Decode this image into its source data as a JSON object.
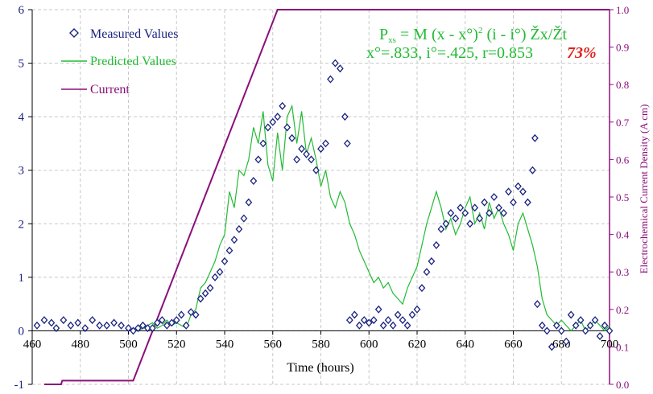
{
  "chart_data": {
    "type": "scatter+line",
    "xlabel": "Time (hours)",
    "ylabel_left": "",
    "ylabel_right": "Electrochemical Current Density (A cm)",
    "xlim": [
      460,
      700
    ],
    "ylim_left": [
      -1,
      6
    ],
    "ylim_right": [
      0.0,
      1.0
    ],
    "xticks": [
      460,
      480,
      500,
      520,
      540,
      560,
      580,
      600,
      620,
      640,
      660,
      680,
      700
    ],
    "yticks_left": [
      -1,
      0,
      1,
      2,
      3,
      4,
      5,
      6
    ],
    "yticks_right": [
      "0.0",
      "0.1",
      "0.2",
      "0.3",
      "0.4",
      "0.5",
      "0.6",
      "0.7",
      "0.8",
      "0.9",
      "1.0"
    ],
    "grid": true,
    "legend": [
      {
        "name": "Measured Values",
        "marker": "diamond-open",
        "color": "#1a237e"
      },
      {
        "name": "Predicted Values",
        "marker": "line",
        "color": "#22bb33"
      },
      {
        "name": "Current",
        "marker": "line",
        "color": "#8b0f7a"
      }
    ],
    "annotation": {
      "formula_lhs": "P",
      "formula_sub": "xs",
      "formula_rhs": " = M (x - x°)",
      "formula_sup": "2",
      "formula_tail": " (i - i°) Žx/Žt",
      "params": "x°=.833, i°=.425, r=0.853",
      "accuracy": "73%"
    },
    "series": [
      {
        "name": "Current",
        "axis": "right",
        "x": [
          465,
          472,
          472.5,
          502,
          562,
          700
        ],
        "y": [
          0.0,
          0.0,
          0.01,
          0.01,
          1.0,
          1.0
        ]
      },
      {
        "name": "Measured Values",
        "axis": "left",
        "x": [
          462,
          465,
          468,
          470,
          473,
          476,
          479,
          482,
          485,
          488,
          491,
          494,
          497,
          500,
          502,
          504,
          506,
          508,
          510,
          512,
          514,
          516,
          518,
          520,
          522,
          524,
          526,
          528,
          530,
          532,
          534,
          536,
          538,
          540,
          542,
          544,
          546,
          548,
          550,
          552,
          554,
          556,
          558,
          560,
          562,
          564,
          566,
          568,
          570,
          572,
          574,
          576,
          578,
          580,
          582,
          584,
          586,
          588,
          590,
          591,
          592,
          594,
          596,
          598,
          600,
          602,
          604,
          606,
          608,
          610,
          612,
          614,
          616,
          618,
          620,
          622,
          624,
          626,
          628,
          630,
          632,
          634,
          636,
          638,
          640,
          642,
          644,
          646,
          648,
          650,
          652,
          654,
          656,
          658,
          660,
          662,
          664,
          666,
          668,
          669,
          670,
          672,
          674,
          676,
          678,
          680,
          682,
          684,
          686,
          688,
          690,
          692,
          694,
          696,
          698,
          700
        ],
        "y": [
          0.1,
          0.2,
          0.15,
          0.05,
          0.2,
          0.1,
          0.15,
          0.05,
          0.2,
          0.1,
          0.1,
          0.15,
          0.1,
          0.05,
          0.0,
          0.05,
          0.1,
          0.05,
          0.05,
          0.15,
          0.2,
          0.1,
          0.15,
          0.2,
          0.3,
          0.1,
          0.35,
          0.3,
          0.6,
          0.7,
          0.8,
          1.0,
          1.1,
          1.3,
          1.5,
          1.7,
          1.9,
          2.1,
          2.4,
          2.8,
          3.2,
          3.5,
          3.8,
          3.9,
          4.0,
          4.2,
          3.8,
          3.6,
          3.2,
          3.4,
          3.3,
          3.2,
          3.0,
          3.4,
          3.5,
          4.7,
          5.0,
          4.9,
          4.0,
          3.5,
          0.2,
          0.3,
          0.1,
          0.2,
          0.15,
          0.2,
          0.4,
          0.1,
          0.2,
          0.1,
          0.3,
          0.2,
          0.1,
          0.3,
          0.4,
          0.8,
          1.1,
          1.3,
          1.6,
          1.9,
          2.0,
          2.2,
          2.1,
          2.3,
          2.2,
          2.0,
          2.3,
          2.1,
          2.4,
          2.2,
          2.5,
          2.3,
          2.2,
          2.6,
          2.4,
          2.7,
          2.6,
          2.4,
          3.0,
          3.6,
          0.5,
          0.1,
          0.0,
          -0.3,
          0.1,
          0.0,
          -0.2,
          0.3,
          0.1,
          0.2,
          0.0,
          0.1,
          0.2,
          -0.1,
          0.1,
          0.0
        ]
      },
      {
        "name": "Predicted Values",
        "axis": "left",
        "x": [
          504,
          506,
          508,
          510,
          512,
          514,
          516,
          518,
          520,
          522,
          524,
          526,
          528,
          530,
          532,
          534,
          536,
          538,
          540,
          542,
          544,
          546,
          548,
          550,
          552,
          554,
          556,
          558,
          560,
          562,
          564,
          566,
          568,
          570,
          572,
          574,
          576,
          578,
          580,
          582,
          584,
          586,
          588,
          590,
          592,
          594,
          596,
          598,
          600,
          602,
          604,
          606,
          608,
          610,
          612,
          614,
          616,
          618,
          620,
          622,
          624,
          626,
          628,
          630,
          632,
          634,
          636,
          638,
          640,
          642,
          644,
          646,
          648,
          650,
          652,
          654,
          656,
          658,
          660,
          662,
          664,
          666,
          668,
          670,
          672,
          674,
          676,
          678,
          680,
          682,
          684,
          686,
          688,
          690,
          692,
          694,
          696,
          698,
          700
        ],
        "y": [
          0.0,
          0.05,
          0.1,
          0.15,
          0.05,
          0.1,
          0.2,
          0.1,
          0.15,
          0.1,
          0.05,
          0.3,
          0.4,
          0.8,
          0.9,
          1.1,
          1.3,
          1.6,
          1.8,
          2.6,
          2.3,
          3.0,
          2.9,
          3.2,
          3.8,
          3.5,
          4.1,
          3.1,
          2.8,
          3.7,
          3.0,
          4.0,
          4.2,
          3.5,
          4.1,
          3.3,
          3.6,
          3.2,
          2.7,
          3.0,
          2.5,
          2.3,
          2.6,
          2.4,
          2.0,
          1.8,
          1.5,
          1.3,
          1.1,
          0.9,
          1.0,
          0.8,
          0.9,
          0.7,
          0.6,
          0.5,
          0.8,
          1.0,
          1.2,
          1.6,
          2.0,
          2.3,
          2.6,
          2.3,
          1.9,
          2.1,
          1.8,
          2.0,
          2.3,
          2.5,
          2.0,
          2.2,
          1.9,
          2.4,
          2.1,
          2.3,
          2.0,
          1.8,
          1.5,
          2.0,
          2.2,
          1.9,
          1.6,
          1.2,
          0.6,
          0.3,
          0.2,
          0.1,
          0.2,
          0.1,
          0.0,
          0.1,
          0.2,
          0.0,
          0.1,
          0.2,
          0.1,
          0.0,
          0.1
        ]
      }
    ]
  }
}
